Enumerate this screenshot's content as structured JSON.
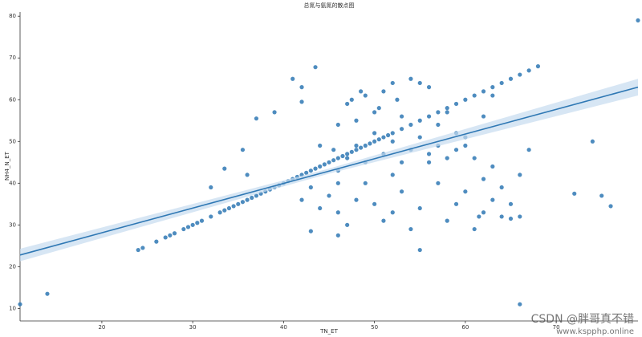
{
  "chart_data": {
    "type": "scatter",
    "title": "总氮与氨氮的散点图",
    "x_label": "TN_ET",
    "y_label": "NH4_N_ET",
    "color": "#2f78b4",
    "xlim": [
      11,
      79
    ],
    "ylim": [
      7,
      81
    ],
    "xticks": [
      20,
      30,
      40,
      50,
      60,
      70
    ],
    "yticks": [
      10,
      20,
      30,
      40,
      50,
      60,
      70,
      80
    ],
    "x": [
      24,
      24.5,
      26,
      27,
      27.5,
      28,
      29,
      29.5,
      30,
      30.5,
      31,
      32,
      33,
      33.5,
      34,
      34.5,
      35,
      35.5,
      36,
      36.5,
      37,
      37.5,
      38,
      38.5,
      39,
      39.5,
      40,
      40.5,
      41,
      41.5,
      42,
      42.5,
      43,
      43.5,
      44,
      44.5,
      45,
      45.5,
      46,
      46.5,
      47,
      47.5,
      48,
      48.5,
      49,
      49.5,
      50,
      50.5,
      51,
      51.5,
      52,
      53,
      54,
      55,
      56,
      57,
      58,
      59,
      60,
      61,
      62,
      63,
      64,
      65,
      66,
      67,
      68,
      41,
      42,
      43.5,
      42,
      39,
      37,
      35.5,
      33.5,
      32,
      36,
      44,
      45.5,
      46,
      47,
      47.5,
      48,
      48.5,
      49,
      50,
      50.5,
      51,
      52,
      52.5,
      53,
      54,
      55,
      56,
      57,
      58,
      59,
      60,
      61,
      62,
      63,
      64,
      65,
      66,
      67,
      62,
      63,
      45,
      46,
      47,
      48,
      49,
      50,
      51,
      52,
      53,
      54,
      55,
      56,
      57,
      58,
      59,
      60,
      61,
      62,
      63,
      64,
      46,
      47,
      48,
      49,
      50,
      51,
      52,
      53,
      54,
      55,
      56,
      57,
      58,
      59,
      60,
      44,
      42,
      43,
      46,
      52,
      11,
      14,
      79,
      66,
      55,
      43,
      46,
      74,
      75,
      72,
      76,
      65,
      61.5,
      66
    ],
    "values": [
      24,
      24.5,
      26,
      27,
      27.5,
      28,
      29,
      29.5,
      30,
      30.5,
      31,
      32,
      33,
      33.5,
      34,
      34.5,
      35,
      35.5,
      36,
      36.5,
      37,
      37.5,
      38,
      38.5,
      39,
      39.5,
      40,
      40.5,
      41,
      41.5,
      42,
      42.5,
      43,
      43.5,
      44,
      44.5,
      45,
      45.5,
      46,
      46.5,
      47,
      47.5,
      48,
      48.5,
      49,
      49.5,
      50,
      50.5,
      51,
      51.5,
      52,
      53,
      54,
      55,
      56,
      57,
      58,
      59,
      60,
      61,
      62,
      63,
      64,
      65,
      66,
      67,
      68,
      65,
      63,
      67.8,
      59.5,
      57,
      55.5,
      48,
      43.5,
      39,
      42,
      49,
      48,
      54,
      59,
      60,
      55,
      62,
      61,
      57,
      58,
      62,
      64,
      60,
      56,
      65,
      64,
      63,
      54,
      57,
      52,
      49,
      46,
      41,
      36,
      32,
      35,
      42,
      48,
      56,
      61,
      37,
      33,
      30,
      36,
      40,
      35,
      31,
      42,
      38,
      29,
      34,
      45,
      40,
      31,
      35,
      38,
      29,
      33,
      44,
      39,
      43,
      46,
      49,
      45,
      52,
      47,
      50,
      45,
      48,
      51,
      47,
      49,
      46,
      48,
      51,
      34,
      36,
      39,
      40,
      33,
      11,
      13.5,
      79,
      11,
      24,
      28.5,
      27.5,
      50,
      37,
      37.5,
      34.5,
      31.5,
      32,
      32
    ],
    "regression": {
      "x": [
        11,
        45,
        79
      ],
      "values": [
        22.8,
        42.9,
        63
      ],
      "ci_lower": [
        21.3,
        42.3,
        61
      ],
      "ci_upper": [
        24.3,
        43.5,
        65
      ],
      "color": "#2f78b4",
      "band_color": "#c6dbef"
    },
    "watermarks": [
      "CSDN @胖哥真不错",
      "www.kspphp.online"
    ]
  }
}
